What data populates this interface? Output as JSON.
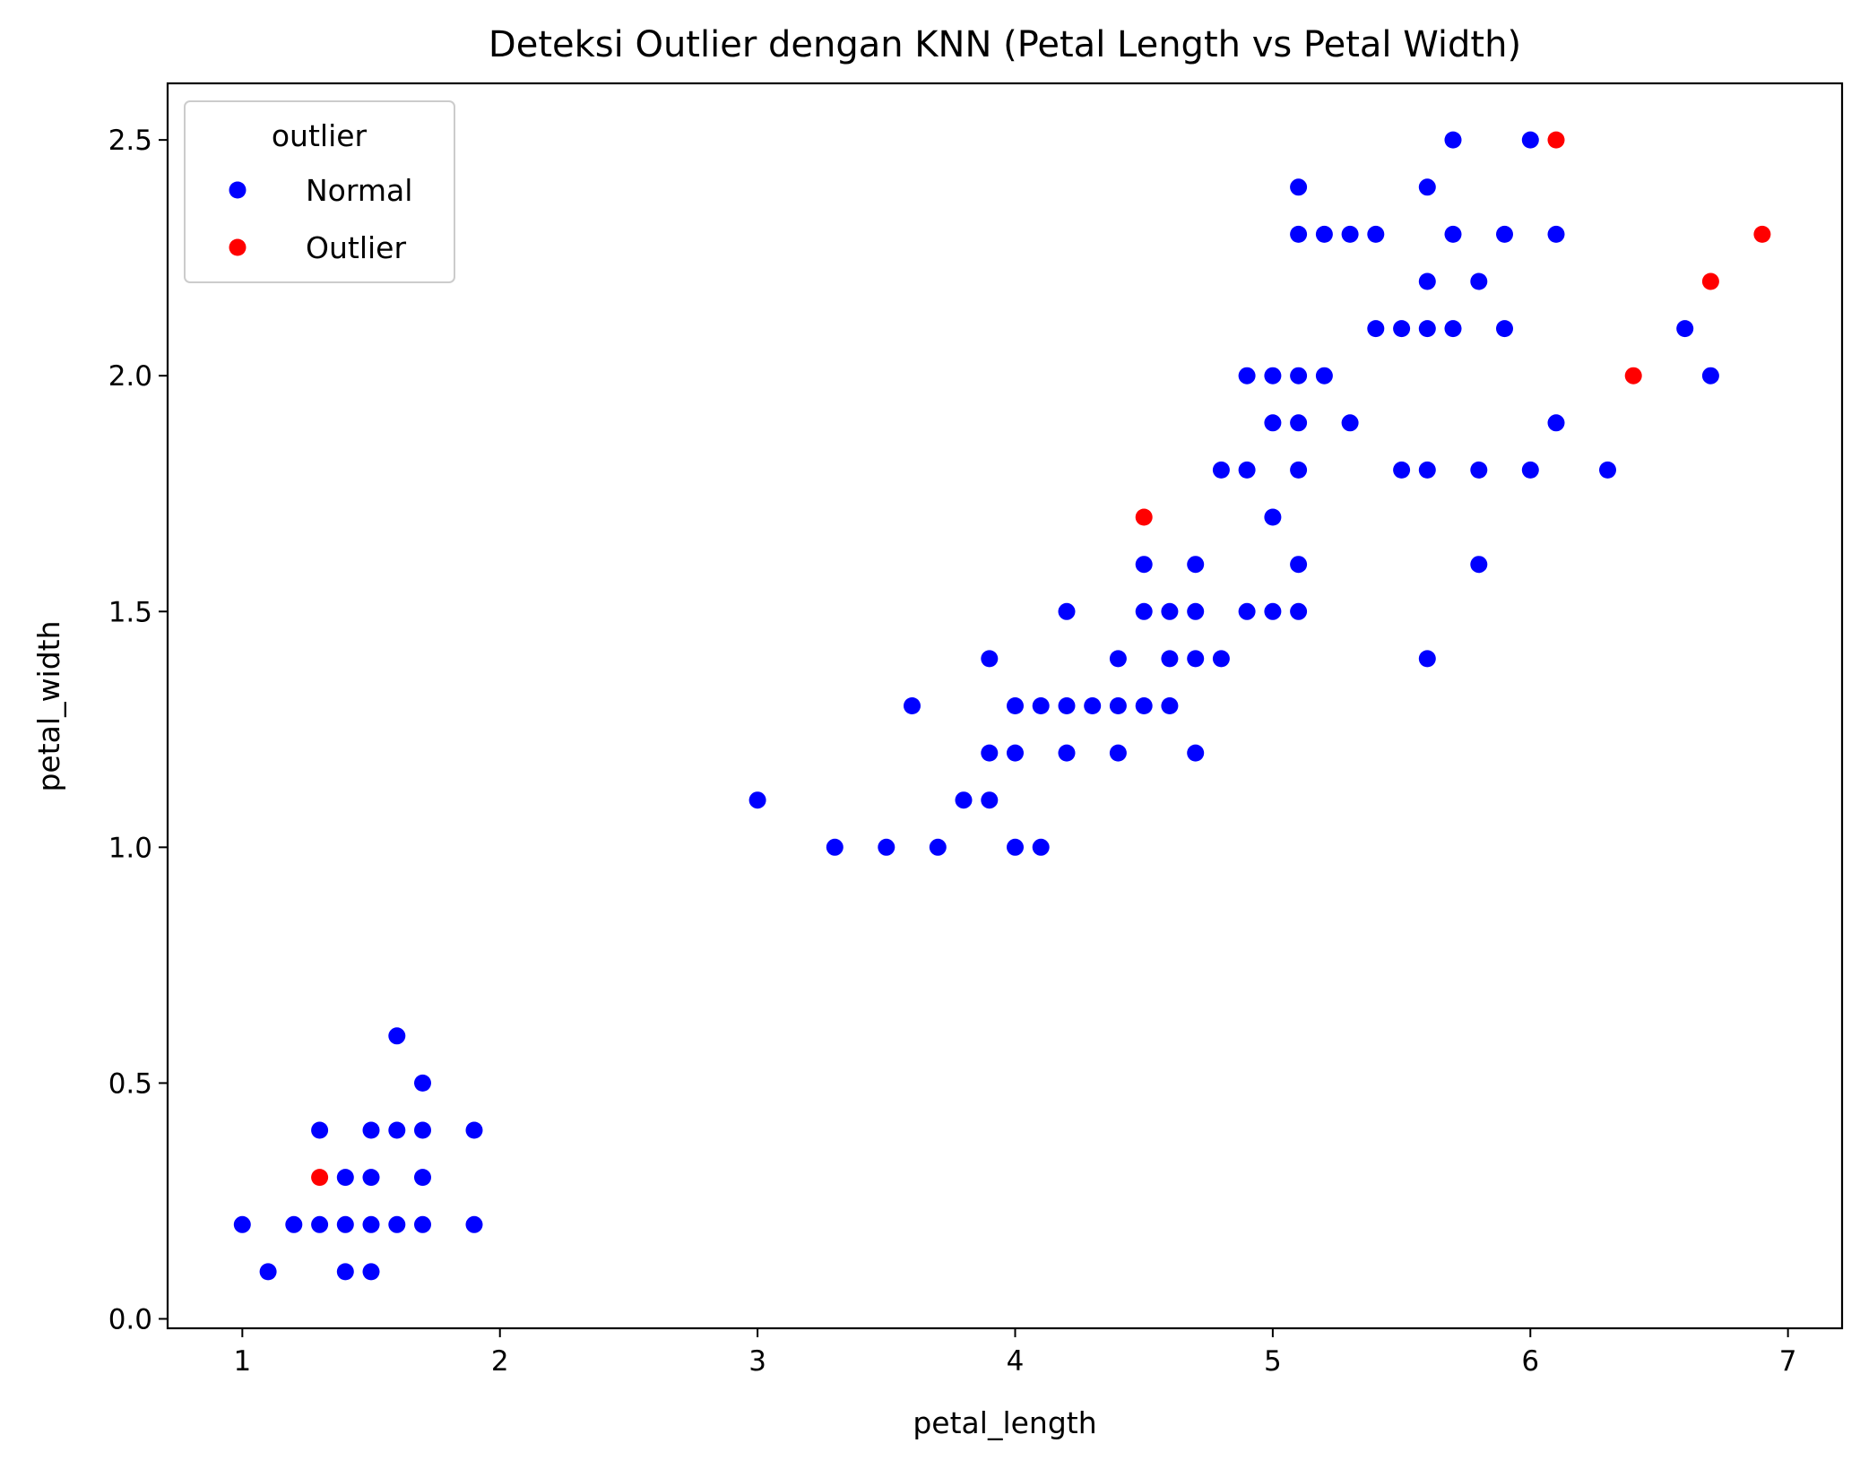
{
  "chart_data": {
    "type": "scatter",
    "title": "Deteksi Outlier dengan KNN (Petal Length vs Petal Width)",
    "xlabel": "petal_length",
    "ylabel": "petal_width",
    "xlim": [
      0.71,
      7.21
    ],
    "ylim": [
      -0.02,
      2.62
    ],
    "xticks": [
      1,
      2,
      3,
      4,
      5,
      6,
      7
    ],
    "xtick_labels": [
      "1",
      "2",
      "3",
      "4",
      "5",
      "6",
      "7"
    ],
    "yticks": [
      0.0,
      0.5,
      1.0,
      1.5,
      2.0,
      2.5
    ],
    "ytick_labels": [
      "0.0",
      "0.5",
      "1.0",
      "1.5",
      "2.0",
      "2.5"
    ],
    "grid": false,
    "legend": {
      "title": "outlier",
      "position": "top-left"
    },
    "series": [
      {
        "name": "Normal",
        "color": "#0000ff",
        "points": [
          [
            1.0,
            0.2
          ],
          [
            1.1,
            0.1
          ],
          [
            1.2,
            0.2
          ],
          [
            1.3,
            0.2
          ],
          [
            1.3,
            0.4
          ],
          [
            1.4,
            0.2
          ],
          [
            1.4,
            0.3
          ],
          [
            1.4,
            0.1
          ],
          [
            1.5,
            0.2
          ],
          [
            1.5,
            0.3
          ],
          [
            1.5,
            0.4
          ],
          [
            1.5,
            0.1
          ],
          [
            1.6,
            0.2
          ],
          [
            1.6,
            0.4
          ],
          [
            1.6,
            0.6
          ],
          [
            1.7,
            0.2
          ],
          [
            1.7,
            0.3
          ],
          [
            1.7,
            0.4
          ],
          [
            1.7,
            0.5
          ],
          [
            1.9,
            0.2
          ],
          [
            1.9,
            0.4
          ],
          [
            3.0,
            1.1
          ],
          [
            3.3,
            1.0
          ],
          [
            3.5,
            1.0
          ],
          [
            3.6,
            1.3
          ],
          [
            3.7,
            1.0
          ],
          [
            3.8,
            1.1
          ],
          [
            3.9,
            1.1
          ],
          [
            3.9,
            1.2
          ],
          [
            3.9,
            1.4
          ],
          [
            4.0,
            1.0
          ],
          [
            4.0,
            1.2
          ],
          [
            4.0,
            1.3
          ],
          [
            4.1,
            1.0
          ],
          [
            4.1,
            1.3
          ],
          [
            4.2,
            1.2
          ],
          [
            4.2,
            1.3
          ],
          [
            4.2,
            1.5
          ],
          [
            4.3,
            1.3
          ],
          [
            4.4,
            1.2
          ],
          [
            4.4,
            1.3
          ],
          [
            4.4,
            1.4
          ],
          [
            4.5,
            1.3
          ],
          [
            4.5,
            1.5
          ],
          [
            4.5,
            1.6
          ],
          [
            4.6,
            1.3
          ],
          [
            4.6,
            1.4
          ],
          [
            4.6,
            1.5
          ],
          [
            4.7,
            1.2
          ],
          [
            4.7,
            1.4
          ],
          [
            4.7,
            1.5
          ],
          [
            4.7,
            1.6
          ],
          [
            4.8,
            1.4
          ],
          [
            4.8,
            1.8
          ],
          [
            4.9,
            1.5
          ],
          [
            4.9,
            1.8
          ],
          [
            4.9,
            2.0
          ],
          [
            5.0,
            1.5
          ],
          [
            5.0,
            1.7
          ],
          [
            5.0,
            1.9
          ],
          [
            5.0,
            2.0
          ],
          [
            5.1,
            1.5
          ],
          [
            5.1,
            1.6
          ],
          [
            5.1,
            1.8
          ],
          [
            5.1,
            1.9
          ],
          [
            5.1,
            2.0
          ],
          [
            5.1,
            2.3
          ],
          [
            5.1,
            2.4
          ],
          [
            5.2,
            2.0
          ],
          [
            5.2,
            2.3
          ],
          [
            5.3,
            1.9
          ],
          [
            5.3,
            2.3
          ],
          [
            5.4,
            2.1
          ],
          [
            5.4,
            2.3
          ],
          [
            5.5,
            1.8
          ],
          [
            5.5,
            2.1
          ],
          [
            5.6,
            1.4
          ],
          [
            5.6,
            1.8
          ],
          [
            5.6,
            2.1
          ],
          [
            5.6,
            2.2
          ],
          [
            5.6,
            2.4
          ],
          [
            5.7,
            2.1
          ],
          [
            5.7,
            2.3
          ],
          [
            5.7,
            2.5
          ],
          [
            5.8,
            1.6
          ],
          [
            5.8,
            1.8
          ],
          [
            5.8,
            2.2
          ],
          [
            5.9,
            2.1
          ],
          [
            5.9,
            2.3
          ],
          [
            6.0,
            1.8
          ],
          [
            6.0,
            2.5
          ],
          [
            6.1,
            1.9
          ],
          [
            6.1,
            2.3
          ],
          [
            6.3,
            1.8
          ],
          [
            6.6,
            2.1
          ],
          [
            6.7,
            2.0
          ]
        ]
      },
      {
        "name": "Outlier",
        "color": "#ff0000",
        "points": [
          [
            1.3,
            0.3
          ],
          [
            4.5,
            1.7
          ],
          [
            6.1,
            2.5
          ],
          [
            6.4,
            2.0
          ],
          [
            6.7,
            2.2
          ],
          [
            6.9,
            2.3
          ]
        ]
      }
    ]
  }
}
